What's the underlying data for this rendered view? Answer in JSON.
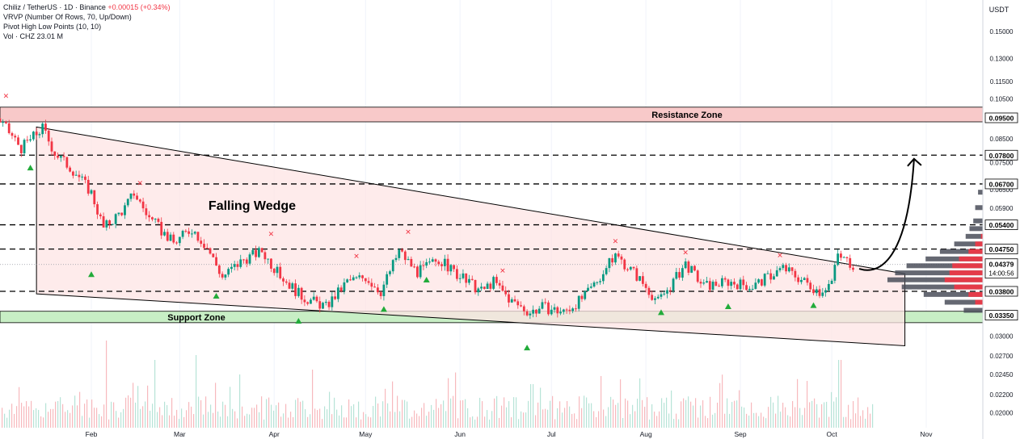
{
  "header": {
    "title": "Chiliz / TetherUS · 1D · Binance",
    "change": "+0.00015 (+0.34%)",
    "indicators": [
      "VRVP (Number Of Rows, 70, Up/Down)",
      "Pivot High Low Points (10, 10)",
      "Vol · CHZ  23.01 M"
    ]
  },
  "colors": {
    "up": "#089981",
    "down": "#f23645",
    "wedge_fill": "#fde4e4",
    "resistance_fill": "#f8c9c9",
    "support_fill": "#c8eec5",
    "pivot_high": "#f23645",
    "pivot_low": "#22ab3a"
  },
  "chart_data": {
    "type": "candlestick",
    "symbol": "CHZUSDT",
    "quote_currency": "USDT",
    "timeframe": "1D",
    "exchange": "Binance",
    "y_axis": {
      "scale": "log",
      "range": [
        0.0192,
        0.1728
      ],
      "tick_labels": [
        "0.15000",
        "0.13000",
        "0.11500",
        "0.10500",
        "0.08500",
        "0.07500",
        "0.06500",
        "0.05900",
        "0.03000",
        "0.02700",
        "0.02450",
        "0.02200",
        "0.02000"
      ]
    },
    "x_axis": {
      "range": [
        "2024-01-01",
        "2024-11-25"
      ],
      "tick_labels": [
        {
          "label": "Feb",
          "date": "2024-02-01"
        },
        {
          "label": "Mar",
          "date": "2024-03-01"
        },
        {
          "label": "Apr",
          "date": "2024-04-01"
        },
        {
          "label": "May",
          "date": "2024-05-01"
        },
        {
          "label": "Jun",
          "date": "2024-06-01"
        },
        {
          "label": "Jul",
          "date": "2024-07-01"
        },
        {
          "label": "Aug",
          "date": "2024-08-01"
        },
        {
          "label": "Sep",
          "date": "2024-09-01"
        },
        {
          "label": "Oct",
          "date": "2024-10-01"
        },
        {
          "label": "Nov",
          "date": "2024-11-01"
        }
      ]
    },
    "price_path": [
      {
        "date": "2024-01-01",
        "close": 0.095
      },
      {
        "date": "2024-01-05",
        "close": 0.088
      },
      {
        "date": "2024-01-09",
        "close": 0.081
      },
      {
        "date": "2024-01-13",
        "close": 0.086
      },
      {
        "date": "2024-01-16",
        "close": 0.09
      },
      {
        "date": "2024-01-20",
        "close": 0.079
      },
      {
        "date": "2024-01-27",
        "close": 0.071
      },
      {
        "date": "2024-02-01",
        "close": 0.064
      },
      {
        "date": "2024-02-05",
        "close": 0.053
      },
      {
        "date": "2024-02-12",
        "close": 0.059
      },
      {
        "date": "2024-02-15",
        "close": 0.064
      },
      {
        "date": "2024-02-20",
        "close": 0.056
      },
      {
        "date": "2024-02-28",
        "close": 0.049
      },
      {
        "date": "2024-03-05",
        "close": 0.053
      },
      {
        "date": "2024-03-10",
        "close": 0.048
      },
      {
        "date": "2024-03-15",
        "close": 0.041
      },
      {
        "date": "2024-03-22",
        "close": 0.045
      },
      {
        "date": "2024-03-28",
        "close": 0.047
      },
      {
        "date": "2024-04-02",
        "close": 0.042
      },
      {
        "date": "2024-04-10",
        "close": 0.037
      },
      {
        "date": "2024-04-18",
        "close": 0.035
      },
      {
        "date": "2024-04-25",
        "close": 0.04
      },
      {
        "date": "2024-05-01",
        "close": 0.041
      },
      {
        "date": "2024-05-06",
        "close": 0.038
      },
      {
        "date": "2024-05-12",
        "close": 0.047
      },
      {
        "date": "2024-05-18",
        "close": 0.042
      },
      {
        "date": "2024-05-25",
        "close": 0.045
      },
      {
        "date": "2024-06-01",
        "close": 0.041
      },
      {
        "date": "2024-06-08",
        "close": 0.038
      },
      {
        "date": "2024-06-12",
        "close": 0.04
      },
      {
        "date": "2024-06-18",
        "close": 0.036
      },
      {
        "date": "2024-06-24",
        "close": 0.034
      },
      {
        "date": "2024-06-28",
        "close": 0.035
      },
      {
        "date": "2024-07-05",
        "close": 0.034
      },
      {
        "date": "2024-07-12",
        "close": 0.037
      },
      {
        "date": "2024-07-18",
        "close": 0.042
      },
      {
        "date": "2024-07-22",
        "close": 0.046
      },
      {
        "date": "2024-07-28",
        "close": 0.042
      },
      {
        "date": "2024-08-05",
        "close": 0.036
      },
      {
        "date": "2024-08-10",
        "close": 0.04
      },
      {
        "date": "2024-08-14",
        "close": 0.044
      },
      {
        "date": "2024-08-20",
        "close": 0.039
      },
      {
        "date": "2024-08-28",
        "close": 0.04
      },
      {
        "date": "2024-09-05",
        "close": 0.039
      },
      {
        "date": "2024-09-15",
        "close": 0.043
      },
      {
        "date": "2024-09-22",
        "close": 0.04
      },
      {
        "date": "2024-09-27",
        "close": 0.038
      },
      {
        "date": "2024-10-01",
        "close": 0.04
      },
      {
        "date": "2024-10-03",
        "close": 0.046
      },
      {
        "date": "2024-10-05",
        "close": 0.045
      },
      {
        "date": "2024-10-08",
        "close": 0.04379
      }
    ],
    "last_price": {
      "value": "0.04379",
      "countdown": "14:00:56"
    },
    "horizontal_levels": [
      {
        "value": 0.0475,
        "label": "0.04750"
      },
      {
        "value": 0.054,
        "label": "0.05400"
      },
      {
        "value": 0.067,
        "label": "0.06700"
      },
      {
        "value": 0.078,
        "label": "0.07800"
      },
      {
        "value": 0.038,
        "label": "0.03800"
      }
    ],
    "zones": [
      {
        "name": "Resistance Zone",
        "top": 0.1005,
        "bottom": 0.093,
        "label_price": "0.09500"
      },
      {
        "name": "Support Zone",
        "top": 0.0342,
        "bottom": 0.0322,
        "label_price": "0.03350"
      }
    ],
    "wedge": {
      "label": "Falling Wedge",
      "upper": [
        {
          "date": "2024-01-14",
          "price": 0.0905
        },
        {
          "date": "2024-10-25",
          "price": 0.0417
        }
      ],
      "lower": [
        {
          "date": "2024-01-14",
          "price": 0.0375
        },
        {
          "date": "2024-10-25",
          "price": 0.0285
        }
      ]
    },
    "projection": {
      "from": {
        "date": "2024-10-10",
        "price": 0.0428
      },
      "to": {
        "date": "2024-10-28",
        "price": 0.0765
      }
    },
    "pivot_highs": [
      {
        "date": "2024-01-04",
        "price": 0.107
      },
      {
        "date": "2024-02-17",
        "price": 0.0675
      },
      {
        "date": "2024-03-31",
        "price": 0.0517
      },
      {
        "date": "2024-04-28",
        "price": 0.0459
      },
      {
        "date": "2024-05-15",
        "price": 0.0522
      },
      {
        "date": "2024-06-15",
        "price": 0.0425
      },
      {
        "date": "2024-07-22",
        "price": 0.0497
      },
      {
        "date": "2024-08-14",
        "price": 0.0468
      },
      {
        "date": "2024-09-14",
        "price": 0.0461
      }
    ],
    "pivot_lows": [
      {
        "date": "2024-01-12",
        "price": 0.0732
      },
      {
        "date": "2024-02-01",
        "price": 0.0417
      },
      {
        "date": "2024-03-13",
        "price": 0.0372
      },
      {
        "date": "2024-04-09",
        "price": 0.0326
      },
      {
        "date": "2024-05-07",
        "price": 0.0347
      },
      {
        "date": "2024-05-21",
        "price": 0.0405
      },
      {
        "date": "2024-06-23",
        "price": 0.0283
      },
      {
        "date": "2024-08-06",
        "price": 0.0341
      },
      {
        "date": "2024-08-28",
        "price": 0.0352
      },
      {
        "date": "2024-09-25",
        "price": 0.0354
      }
    ],
    "volume_profile": [
      {
        "price": 0.0343,
        "up": 0.0,
        "down": 0.2
      },
      {
        "price": 0.0358,
        "up": 0.08,
        "down": 0.4
      },
      {
        "price": 0.0373,
        "up": 0.15,
        "down": 0.62
      },
      {
        "price": 0.0388,
        "up": 0.3,
        "down": 0.85
      },
      {
        "price": 0.0403,
        "up": 0.4,
        "down": 1.0
      },
      {
        "price": 0.0418,
        "up": 0.35,
        "down": 0.92
      },
      {
        "price": 0.0434,
        "up": 0.32,
        "down": 0.8
      },
      {
        "price": 0.045,
        "up": 0.25,
        "down": 0.6
      },
      {
        "price": 0.0468,
        "up": 0.15,
        "down": 0.45
      },
      {
        "price": 0.0487,
        "up": 0.08,
        "down": 0.3
      },
      {
        "price": 0.0507,
        "up": 0.02,
        "down": 0.18
      },
      {
        "price": 0.0528,
        "up": 0.0,
        "down": 0.14
      },
      {
        "price": 0.055,
        "up": 0.0,
        "down": 0.1
      },
      {
        "price": 0.059,
        "up": 0.0,
        "down": 0.08
      },
      {
        "price": 0.064,
        "up": 0.0,
        "down": 0.05
      }
    ]
  }
}
